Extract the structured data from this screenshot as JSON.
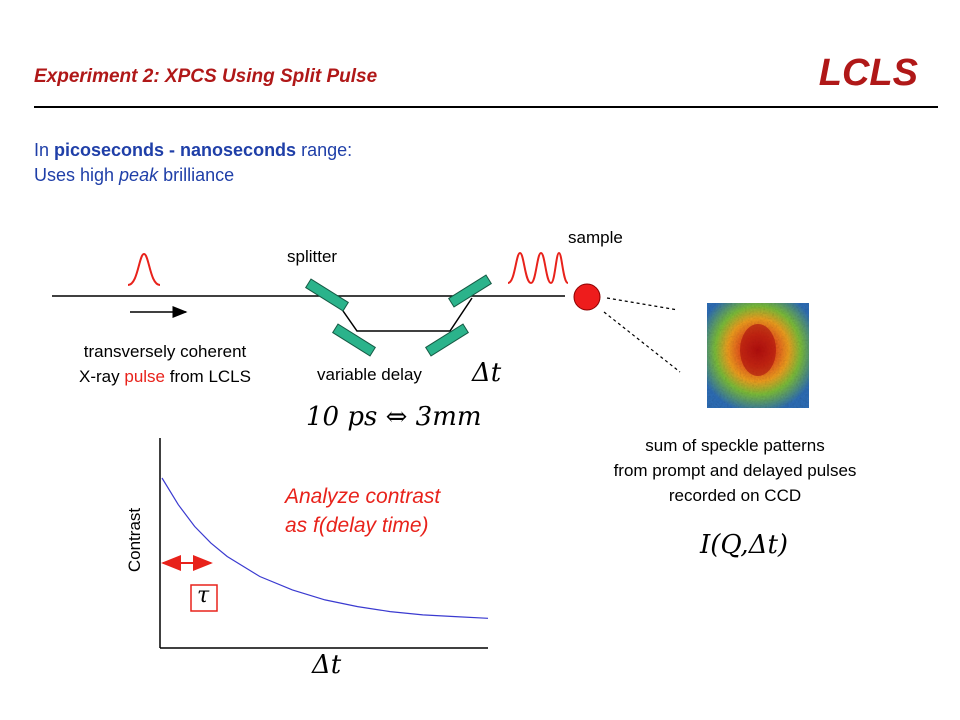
{
  "header": {
    "title": "Experiment 2: XPCS Using Split Pulse",
    "logo": "LCLS"
  },
  "intro": {
    "line1_prefix": "In ",
    "line1_bold": "picoseconds - nanoseconds",
    "line1_suffix": " range:",
    "line2_prefix": "Uses high ",
    "line2_italic": "peak",
    "line2_suffix": " brilliance"
  },
  "diagram": {
    "splitter_label": "splitter",
    "sample_label": "sample",
    "variable_delay_label": "variable delay",
    "delay_symbol": "Δt",
    "source_line1": "transversely coherent",
    "source_line2_pre": "X-ray ",
    "source_line2_red": "pulse",
    "source_line2_post": " from LCLS",
    "conversion": "10 ps ⇔ 3mm",
    "speckle_line1": "sum of speckle patterns",
    "speckle_line2": "from prompt and delayed pulses",
    "speckle_line3": "recorded on CCD",
    "intensity_formula": "I(Q,Δt)",
    "colors": {
      "accent_red": "#e8221b",
      "mirror_green": "#2bb38b",
      "intro_blue": "#1f3fa8",
      "curve_blue": "#3a3ad0"
    }
  },
  "chart_data": {
    "type": "line",
    "title": "",
    "xlabel": "Δt",
    "ylabel": "Contrast",
    "tau_label": "τ",
    "annotation_line1": "Analyze contrast",
    "annotation_line2": "as f(delay time)",
    "series": [
      {
        "x": [
          0,
          0.05,
          0.1,
          0.15,
          0.2,
          0.3,
          0.4,
          0.5,
          0.6,
          0.7,
          0.8,
          0.9,
          1.0
        ],
        "y": [
          1.0,
          0.84,
          0.71,
          0.61,
          0.53,
          0.41,
          0.33,
          0.27,
          0.23,
          0.2,
          0.18,
          0.17,
          0.16
        ]
      }
    ],
    "tau": 0.15
  }
}
